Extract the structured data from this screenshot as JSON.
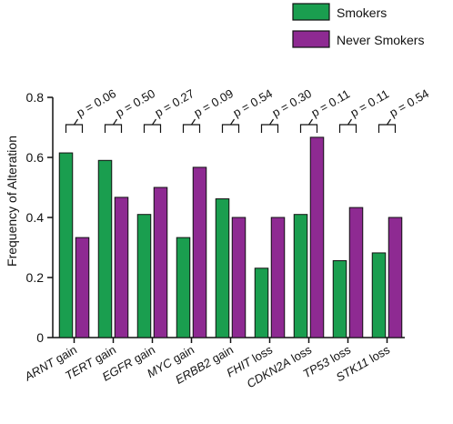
{
  "chart_data": {
    "type": "bar",
    "title": "",
    "xlabel": "",
    "ylabel": "Frequency of Alteration",
    "ylim": [
      0,
      0.8
    ],
    "yticks": [
      0,
      0.2,
      0.4,
      0.6,
      0.8
    ],
    "ytick_labels": [
      "0",
      "0.2",
      "0.4",
      "0.6",
      "0.8"
    ],
    "legend_position": "top-right",
    "grid": false,
    "categories": [
      {
        "gene": "ARNT",
        "type": "gain"
      },
      {
        "gene": "TERT",
        "type": "gain"
      },
      {
        "gene": "EGFR",
        "type": "gain"
      },
      {
        "gene": "MYC",
        "type": "gain"
      },
      {
        "gene": "ERBB2",
        "type": "gain"
      },
      {
        "gene": "FHIT",
        "type": "loss"
      },
      {
        "gene": "CDKN2A",
        "type": "loss"
      },
      {
        "gene": "TP53",
        "type": "loss"
      },
      {
        "gene": "STK11",
        "type": "loss"
      }
    ],
    "series": [
      {
        "name": "Smokers",
        "color": "#1a9e4f",
        "values": [
          0.615,
          0.59,
          0.41,
          0.333,
          0.462,
          0.231,
          0.41,
          0.256,
          0.282
        ]
      },
      {
        "name": "Never Smokers",
        "color": "#8e2a92",
        "values": [
          0.333,
          0.467,
          0.5,
          0.567,
          0.4,
          0.4,
          0.667,
          0.433,
          0.4
        ]
      }
    ],
    "annotations": [
      "p = 0.06",
      "p = 0.50",
      "p = 0.27",
      "p = 0.09",
      "p = 0.54",
      "p = 0.30",
      "p = 0.11",
      "p = 0.11",
      "p = 0.54"
    ]
  }
}
